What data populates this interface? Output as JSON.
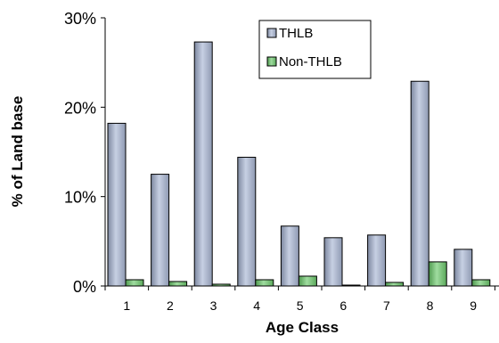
{
  "chart_data": {
    "type": "bar",
    "xlabel": "Age Class",
    "ylabel": "% of Land base",
    "categories": [
      "1",
      "2",
      "3",
      "4",
      "5",
      "6",
      "7",
      "8",
      "9"
    ],
    "ylim": [
      0,
      30
    ],
    "yticks": [
      0,
      10,
      20,
      30
    ],
    "ytick_labels": [
      "0%",
      "10%",
      "20%",
      "30%"
    ],
    "grid": false,
    "legend_position": "top-right",
    "series": [
      {
        "name": "THLB",
        "color": "#a8b4cc",
        "values": [
          18.2,
          12.5,
          27.3,
          14.4,
          6.7,
          5.4,
          5.7,
          22.9,
          4.1
        ]
      },
      {
        "name": "Non-THLB",
        "color": "#7bc17b",
        "values": [
          0.7,
          0.5,
          0.2,
          0.7,
          1.1,
          0.1,
          0.4,
          2.7,
          0.7
        ]
      }
    ]
  }
}
